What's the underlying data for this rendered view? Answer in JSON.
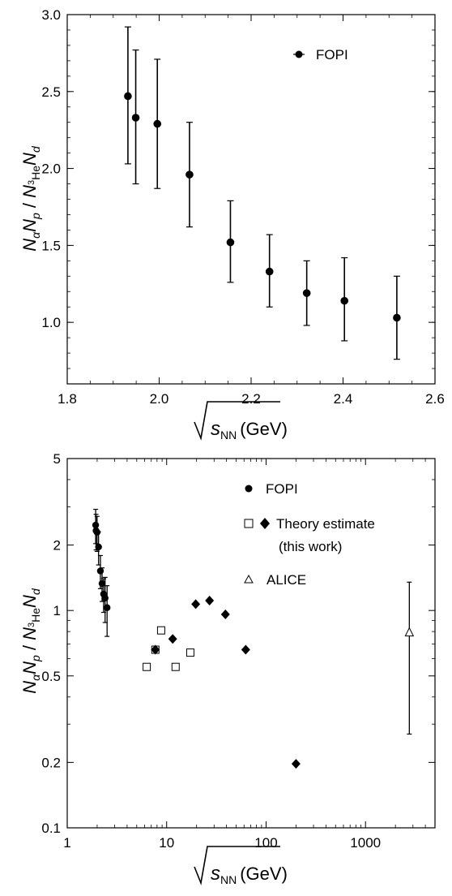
{
  "chart_data": [
    {
      "type": "scatter",
      "xlabel": "√s_NN (GeV)",
      "ylabel": "N_α N_p / N_3He N_d",
      "xlim": [
        1.8,
        2.6
      ],
      "ylim": [
        0.6,
        3.0
      ],
      "xscale": "linear",
      "yscale": "linear",
      "x_ticks": [
        "1.8",
        "2.0",
        "2.2",
        "2.4",
        "2.6"
      ],
      "y_ticks": [
        "1.0",
        "1.5",
        "2.0",
        "2.5",
        "3.0"
      ],
      "legend_position": "top-right",
      "series": [
        {
          "name": "FOPI",
          "marker": "filled-circle",
          "color": "#000000",
          "points": [
            {
              "x": 1.932,
              "y": 2.47,
              "lo": 2.03,
              "hi": 2.92
            },
            {
              "x": 1.949,
              "y": 2.33,
              "lo": 1.9,
              "hi": 2.77
            },
            {
              "x": 1.996,
              "y": 2.29,
              "lo": 1.87,
              "hi": 2.71
            },
            {
              "x": 2.066,
              "y": 1.96,
              "lo": 1.62,
              "hi": 2.3
            },
            {
              "x": 2.155,
              "y": 1.52,
              "lo": 1.26,
              "hi": 1.79
            },
            {
              "x": 2.24,
              "y": 1.33,
              "lo": 1.1,
              "hi": 1.57
            },
            {
              "x": 2.321,
              "y": 1.19,
              "lo": 0.98,
              "hi": 1.4
            },
            {
              "x": 2.403,
              "y": 1.14,
              "lo": 0.88,
              "hi": 1.42
            },
            {
              "x": 2.517,
              "y": 1.03,
              "lo": 0.76,
              "hi": 1.3
            }
          ]
        }
      ]
    },
    {
      "type": "scatter",
      "xlabel": "√s_NN (GeV)",
      "ylabel": "N_α N_p / N_3He N_d",
      "xlim": [
        1,
        5000
      ],
      "ylim": [
        0.1,
        5
      ],
      "xscale": "log",
      "yscale": "log",
      "x_ticks": [
        "1",
        "10",
        "100",
        "1000"
      ],
      "y_ticks": [
        "0.1",
        "0.2",
        "0.5",
        "1",
        "2",
        "5"
      ],
      "legend_position": "top-right",
      "series": [
        {
          "name": "FOPI",
          "marker": "filled-circle",
          "color": "#000000",
          "points": [
            {
              "x": 1.932,
              "y": 2.47,
              "lo": 2.03,
              "hi": 2.92
            },
            {
              "x": 1.949,
              "y": 2.33,
              "lo": 1.9,
              "hi": 2.77
            },
            {
              "x": 1.996,
              "y": 2.29,
              "lo": 1.87,
              "hi": 2.71
            },
            {
              "x": 2.066,
              "y": 1.96,
              "lo": 1.62,
              "hi": 2.3
            },
            {
              "x": 2.155,
              "y": 1.52,
              "lo": 1.26,
              "hi": 1.79
            },
            {
              "x": 2.24,
              "y": 1.33,
              "lo": 1.1,
              "hi": 1.57
            },
            {
              "x": 2.321,
              "y": 1.19,
              "lo": 0.98,
              "hi": 1.4
            },
            {
              "x": 2.403,
              "y": 1.14,
              "lo": 0.88,
              "hi": 1.42
            },
            {
              "x": 2.517,
              "y": 1.03,
              "lo": 0.76,
              "hi": 1.3
            }
          ]
        },
        {
          "name": "Theory estimate (this work)",
          "marker": "open-square",
          "color": "#000000",
          "points": [
            {
              "x": 6.3,
              "y": 0.55
            },
            {
              "x": 7.7,
              "y": 0.66
            },
            {
              "x": 8.8,
              "y": 0.81
            },
            {
              "x": 12.3,
              "y": 0.55
            },
            {
              "x": 17.3,
              "y": 0.64
            }
          ]
        },
        {
          "name": "Theory estimate (this work)",
          "marker": "filled-diamond",
          "color": "#000000",
          "points": [
            {
              "x": 7.7,
              "y": 0.66
            },
            {
              "x": 11.5,
              "y": 0.74
            },
            {
              "x": 19.6,
              "y": 1.07
            },
            {
              "x": 27,
              "y": 1.11
            },
            {
              "x": 39,
              "y": 0.96
            },
            {
              "x": 62.4,
              "y": 0.66
            },
            {
              "x": 200,
              "y": 0.197
            }
          ]
        },
        {
          "name": "ALICE",
          "marker": "open-triangle",
          "color": "#000000",
          "points": [
            {
              "x": 2760,
              "y": 0.79,
              "lo": 0.27,
              "hi": 1.35
            }
          ]
        }
      ]
    }
  ],
  "legend1": [
    {
      "label": "FOPI"
    }
  ],
  "legend2": [
    {
      "label": "FOPI"
    },
    {
      "label": "Theory estimate"
    },
    {
      "label": "(this work)"
    },
    {
      "label": "ALICE"
    }
  ]
}
